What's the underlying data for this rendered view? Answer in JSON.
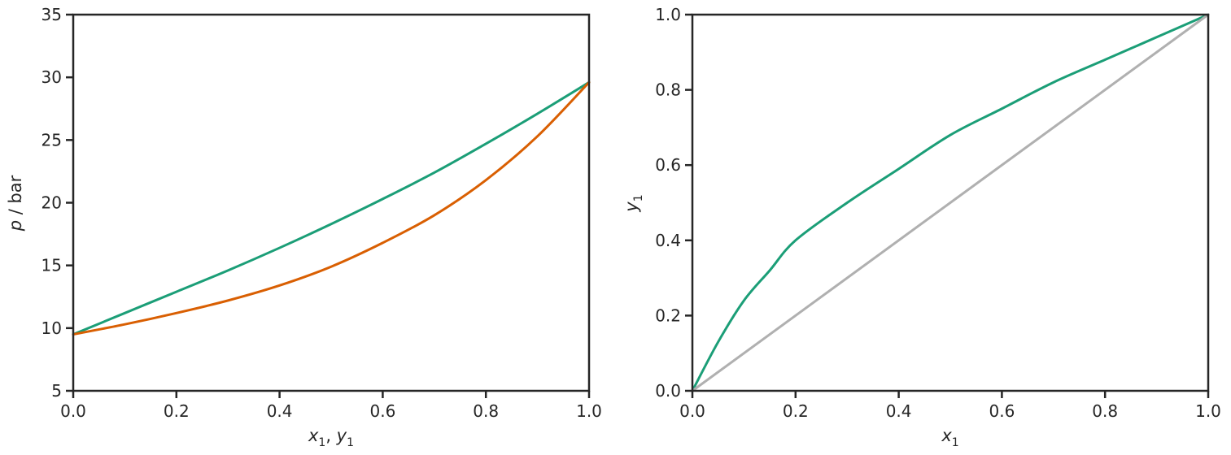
{
  "chart_data": [
    {
      "type": "line",
      "title": "",
      "xlabel": "x1, y1",
      "ylabel": "p / bar",
      "xlim": [
        0.0,
        1.0
      ],
      "ylim": [
        5,
        35
      ],
      "xticks": [
        "0.0",
        "0.2",
        "0.4",
        "0.6",
        "0.8",
        "1.0"
      ],
      "yticks": [
        "5",
        "10",
        "15",
        "20",
        "25",
        "30",
        "35"
      ],
      "grid": false,
      "series": [
        {
          "color": "#1b9e77",
          "x": [
            0.0,
            0.1,
            0.2,
            0.3,
            0.4,
            0.5,
            0.6,
            0.7,
            0.8,
            0.9,
            1.0
          ],
          "y": [
            9.5,
            11.2,
            12.9,
            14.6,
            16.4,
            18.3,
            20.3,
            22.4,
            24.7,
            27.1,
            29.6
          ]
        },
        {
          "color": "#d95f02",
          "x": [
            0.0,
            0.1,
            0.2,
            0.3,
            0.4,
            0.5,
            0.6,
            0.7,
            0.8,
            0.9,
            1.0
          ],
          "y": [
            9.5,
            10.3,
            11.2,
            12.2,
            13.4,
            14.9,
            16.8,
            19.0,
            21.8,
            25.3,
            29.6
          ]
        }
      ]
    },
    {
      "type": "line",
      "title": "",
      "xlabel": "x1",
      "ylabel": "y1",
      "xlim": [
        0.0,
        1.0
      ],
      "ylim": [
        0.0,
        1.0
      ],
      "xticks": [
        "0.0",
        "0.2",
        "0.4",
        "0.6",
        "0.8",
        "1.0"
      ],
      "yticks": [
        "0.0",
        "0.2",
        "0.4",
        "0.6",
        "0.8",
        "1.0"
      ],
      "grid": false,
      "series": [
        {
          "color": "#1b9e77",
          "x": [
            0.0,
            0.05,
            0.1,
            0.15,
            0.2,
            0.3,
            0.4,
            0.5,
            0.6,
            0.7,
            0.8,
            0.9,
            1.0
          ],
          "y": [
            0.0,
            0.13,
            0.24,
            0.32,
            0.4,
            0.5,
            0.59,
            0.68,
            0.75,
            0.82,
            0.88,
            0.94,
            1.0
          ]
        },
        {
          "color": "#b0b0b0",
          "x": [
            0.0,
            1.0
          ],
          "y": [
            0.0,
            1.0
          ]
        }
      ]
    }
  ]
}
